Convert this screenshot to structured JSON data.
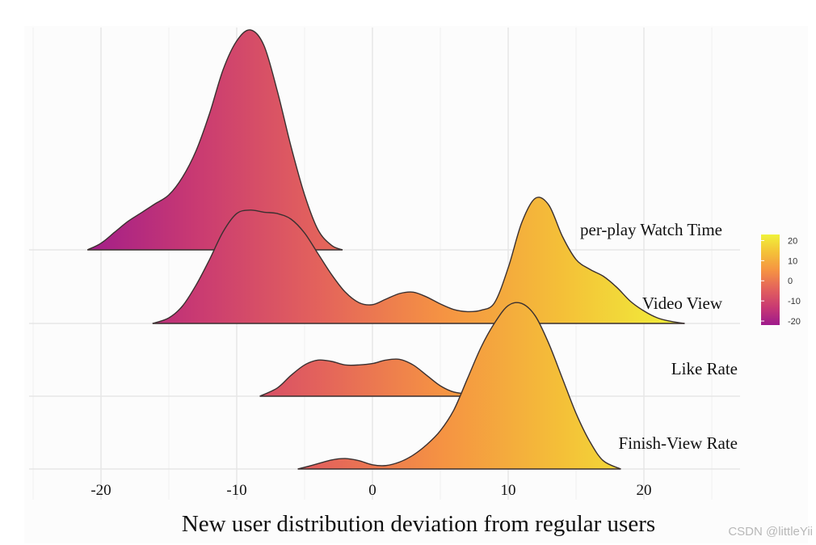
{
  "chart_data": {
    "type": "ridgeline",
    "xlabel": "New user distribution deviation from regular users",
    "xlim": [
      -25,
      27
    ],
    "xticks": [
      -20,
      -10,
      0,
      10,
      20
    ],
    "xtick_labels": [
      "-20",
      "-10",
      "0",
      "10",
      "20"
    ],
    "grid": true,
    "colorscale": {
      "type": "plasma-like",
      "range": [
        -22,
        23
      ],
      "ticks": [
        20,
        10,
        0,
        -10,
        -20
      ],
      "tick_labels": [
        "20",
        "10",
        "0",
        "-10",
        "-20"
      ],
      "colors": [
        "#9e1a8c",
        "#c93a72",
        "#e3625c",
        "#f59243",
        "#f4c038",
        "#f0f23a"
      ]
    },
    "series": [
      {
        "name": "per-play Watch Time",
        "x": [
          -21,
          -20,
          -19,
          -18,
          -17,
          -16,
          -15,
          -14,
          -13,
          -12,
          -11,
          -10,
          -9,
          -8,
          -7,
          -6,
          -5,
          -4,
          -3,
          -2.2
        ],
        "density": [
          0.0,
          0.03,
          0.08,
          0.13,
          0.17,
          0.21,
          0.25,
          0.33,
          0.45,
          0.62,
          0.82,
          0.95,
          1.0,
          0.93,
          0.72,
          0.47,
          0.25,
          0.09,
          0.02,
          0.0
        ]
      },
      {
        "name": "Video View",
        "x": [
          -16.2,
          -15,
          -14,
          -13,
          -12,
          -11,
          -10,
          -9,
          -8,
          -7,
          -6,
          -5,
          -4,
          -3,
          -2,
          -1,
          0,
          1,
          2,
          3,
          4,
          5,
          6,
          7,
          8,
          9,
          10,
          11,
          12,
          13,
          14,
          15,
          16,
          17,
          18,
          19,
          20,
          21,
          22,
          23
        ],
        "density": [
          0.0,
          0.08,
          0.25,
          0.55,
          0.92,
          1.32,
          1.58,
          1.63,
          1.6,
          1.58,
          1.5,
          1.3,
          1.0,
          0.7,
          0.45,
          0.3,
          0.27,
          0.35,
          0.43,
          0.45,
          0.38,
          0.28,
          0.2,
          0.17,
          0.19,
          0.3,
          0.8,
          1.45,
          1.8,
          1.7,
          1.25,
          0.92,
          0.78,
          0.68,
          0.52,
          0.32,
          0.18,
          0.08,
          0.03,
          0.0
        ]
      },
      {
        "name": "Like Rate",
        "x": [
          -8.3,
          -7,
          -6,
          -5,
          -4,
          -3,
          -2,
          -1,
          0,
          1,
          2,
          3,
          4,
          5,
          6,
          7,
          7.8
        ],
        "density": [
          0.0,
          0.12,
          0.3,
          0.45,
          0.52,
          0.5,
          0.45,
          0.45,
          0.47,
          0.52,
          0.53,
          0.45,
          0.3,
          0.15,
          0.06,
          0.04,
          0.06
        ]
      },
      {
        "name": "Finish-View Rate",
        "x": [
          -5.5,
          -4.5,
          -3,
          -2,
          -1,
          0,
          1,
          2,
          3,
          4,
          5,
          6,
          7,
          8,
          9,
          10,
          11,
          12,
          13,
          14,
          15,
          16,
          17,
          18.3
        ],
        "density": [
          0.0,
          0.05,
          0.13,
          0.15,
          0.12,
          0.06,
          0.05,
          0.1,
          0.2,
          0.35,
          0.55,
          0.85,
          1.3,
          1.75,
          2.1,
          2.35,
          2.38,
          2.2,
          1.8,
          1.3,
          0.8,
          0.4,
          0.12,
          0.0
        ]
      }
    ]
  },
  "watermark": "CSDN @littleYii"
}
